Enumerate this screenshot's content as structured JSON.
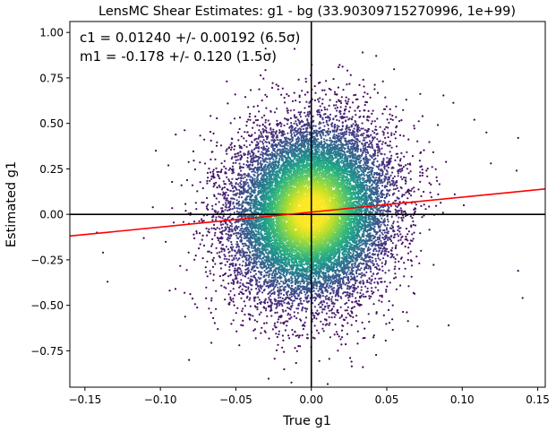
{
  "chart_data": {
    "type": "scatter",
    "title": "LensMC Shear Estimates: g1  - bg (33.90309715270996, 1e+99)",
    "xlabel": "True g1",
    "ylabel": "Estimated g1",
    "xlim": [
      -0.16,
      0.155
    ],
    "ylim": [
      -0.95,
      1.06
    ],
    "x_ticks": [
      -0.15,
      -0.1,
      -0.05,
      0.0,
      0.05,
      0.1,
      0.15
    ],
    "x_tick_labels": [
      "−0.15",
      "−0.10",
      "−0.05",
      "0.00",
      "0.05",
      "0.10",
      "0.15"
    ],
    "y_ticks": [
      -0.75,
      -0.5,
      -0.25,
      0.0,
      0.25,
      0.5,
      0.75,
      1.0
    ],
    "y_tick_labels": [
      "−0.75",
      "−0.50",
      "−0.25",
      "0.00",
      "0.25",
      "0.50",
      "0.75",
      "1.00"
    ],
    "annotations": [
      "c1 = 0.01240 +/- 0.00192 (6.5σ)",
      "m1 = -0.178 +/- 0.120 (1.5σ)"
    ],
    "fit_line": {
      "slope": 0.822,
      "intercept": 0.0124,
      "color": "#ff0000"
    },
    "reference_lines": {
      "x": 0.0,
      "y": 0.0,
      "color": "#000000"
    },
    "scatter_distribution": {
      "x_sigma": 0.026,
      "y_sigma": 0.24,
      "n_points_approx": 16000,
      "colormap": "viridis (point density)",
      "color_low": "#440154",
      "color_high": "#fde725"
    },
    "outlier_points": [
      [
        -0.135,
        -0.37
      ],
      [
        -0.142,
        -0.1
      ],
      [
        -0.138,
        -0.21
      ],
      [
        -0.103,
        0.35
      ],
      [
        -0.111,
        -0.13
      ],
      [
        0.108,
        0.52
      ],
      [
        0.116,
        0.45
      ],
      [
        0.137,
        0.42
      ],
      [
        0.136,
        0.24
      ],
      [
        0.14,
        -0.46
      ],
      [
        0.137,
        -0.31
      ],
      [
        0.101,
        0.05
      ],
      [
        0.119,
        0.28
      ],
      [
        0.091,
        -0.61
      ],
      [
        0.095,
        0.11
      ],
      [
        -0.09,
        -0.41
      ],
      [
        -0.081,
        -0.8
      ],
      [
        0.034,
        0.89
      ],
      [
        -0.065,
        -0.57
      ],
      [
        -0.086,
        0.16
      ]
    ],
    "grid": false,
    "legend": "none"
  }
}
